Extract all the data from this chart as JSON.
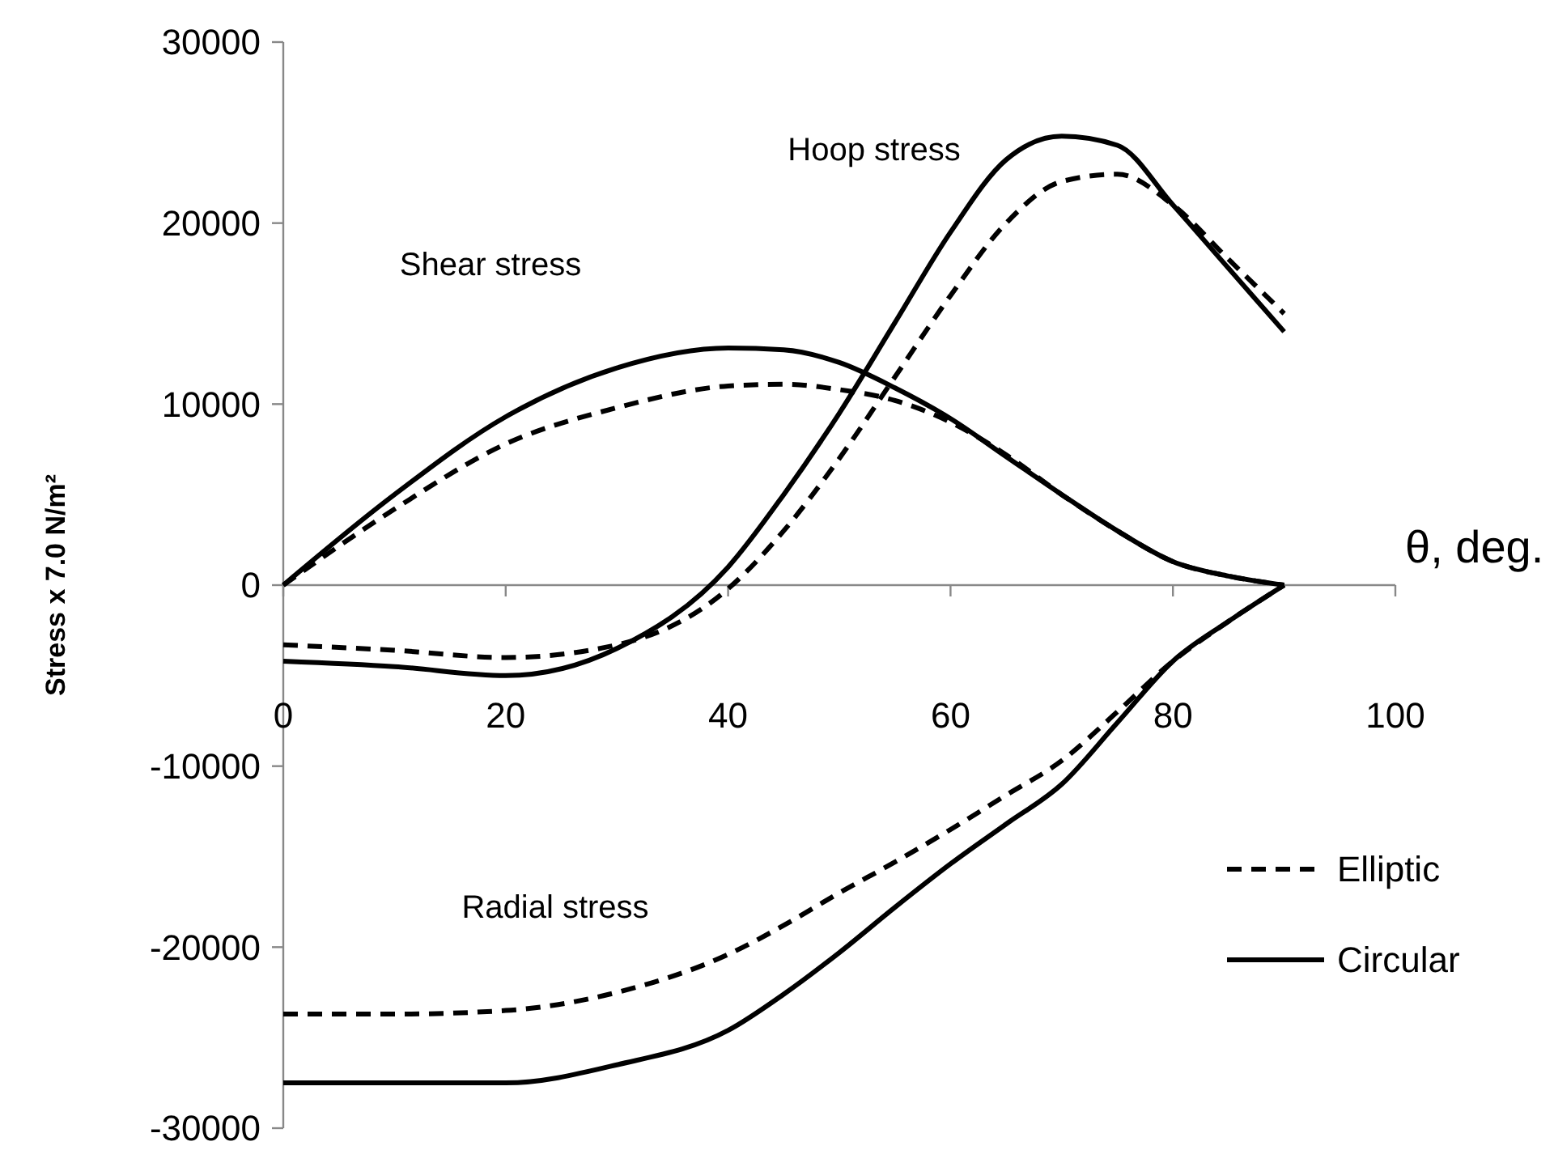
{
  "chart_data": {
    "type": "line",
    "xlabel": "θ, deg.",
    "ylabel": "Stress x 7.0 N/m²",
    "x": [
      0,
      10,
      20,
      30,
      40,
      45,
      50,
      55,
      60,
      65,
      70,
      75,
      80,
      85,
      90
    ],
    "series": [
      {
        "name": "Elliptic",
        "color": "#000000",
        "line_style": "dashed",
        "values": [
          0,
          4200,
          7800,
          9800,
          11000,
          11100,
          10800,
          10200,
          9000,
          7200,
          5000,
          3000,
          1300,
          500,
          0
        ]
      },
      {
        "name": "Circular",
        "color": "#000000",
        "line_style": "solid",
        "values": [
          0,
          5000,
          9300,
          12000,
          13100,
          13000,
          12300,
          10900,
          9200,
          7100,
          5000,
          3000,
          1300,
          500,
          0
        ]
      },
      {
        "color": "#000000",
        "line_style": "dashed",
        "values": [
          -3300,
          -3600,
          -4000,
          -3300,
          -200,
          3000,
          7000,
          11500,
          16000,
          20000,
          22300,
          22700,
          21000,
          18000,
          15000
        ]
      },
      {
        "color": "#000000",
        "line_style": "solid",
        "values": [
          -4200,
          -4500,
          -5000,
          -3500,
          1000,
          5000,
          9500,
          14500,
          19500,
          23500,
          24800,
          24300,
          21000,
          17500,
          14000
        ]
      },
      {
        "color": "#000000",
        "line_style": "dashed",
        "values": [
          -23700,
          -23700,
          -23500,
          -22500,
          -20400,
          -18800,
          -17000,
          -15300,
          -13500,
          -11600,
          -9700,
          -7000,
          -4200,
          -2000,
          0
        ]
      },
      {
        "color": "#000000",
        "line_style": "solid",
        "values": [
          -27500,
          -27500,
          -27500,
          -26500,
          -24600,
          -22600,
          -20300,
          -17800,
          -15400,
          -13200,
          -11000,
          -7600,
          -4200,
          -2000,
          0
        ]
      }
    ],
    "xlim": [
      0,
      100
    ],
    "ylim": [
      -30000,
      30000
    ],
    "xticks": [
      0,
      20,
      40,
      60,
      80,
      100
    ],
    "yticks": [
      -30000,
      -20000,
      -10000,
      0,
      10000,
      20000,
      30000
    ],
    "legend": "bottom right",
    "annotations": [
      "Shear stress",
      "Hoop stress",
      "Radial stress"
    ]
  }
}
